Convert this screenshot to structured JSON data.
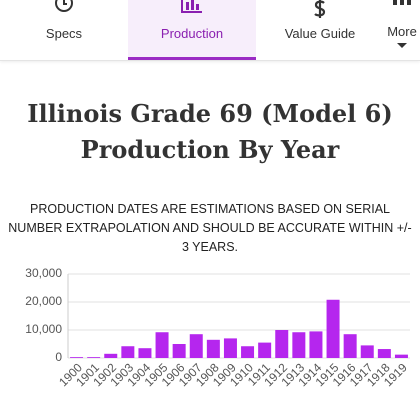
{
  "tabs": [
    "Specs",
    "Production",
    "Value Guide",
    "More"
  ],
  "active_tab": 1,
  "chart_data": {
    "type": "bar",
    "title": "Illinois Grade 69 (Model 6) Production By Year",
    "subtitle": "PRODUCTION DATES ARE ESTIMATIONS BASED ON SERIAL NUMBER EXTRAPOLATION AND SHOULD BE ACCURATE WITHIN +/- 3 YEARS.",
    "categories": [
      "1900",
      "1901",
      "1902",
      "1903",
      "1904",
      "1905",
      "1906",
      "1907",
      "1908",
      "1909",
      "1910",
      "1911",
      "1912",
      "1913",
      "1914",
      "1915",
      "1916",
      "1917",
      "1918",
      "1919"
    ],
    "values": [
      300,
      300,
      1500,
      4200,
      3500,
      9200,
      5000,
      8500,
      6500,
      7000,
      4200,
      5500,
      10000,
      9200,
      9500,
      20800,
      8500,
      4500,
      3200,
      1200
    ],
    "color": "#b526ee",
    "ylim": [
      0,
      30000
    ],
    "yticks": [
      0,
      {
        "value": 10000,
        "label": "10,000"
      },
      {
        "value": 20000,
        "label": "20,000"
      },
      {
        "value": 30000,
        "label": "30,000"
      }
    ],
    "grid": true
  }
}
